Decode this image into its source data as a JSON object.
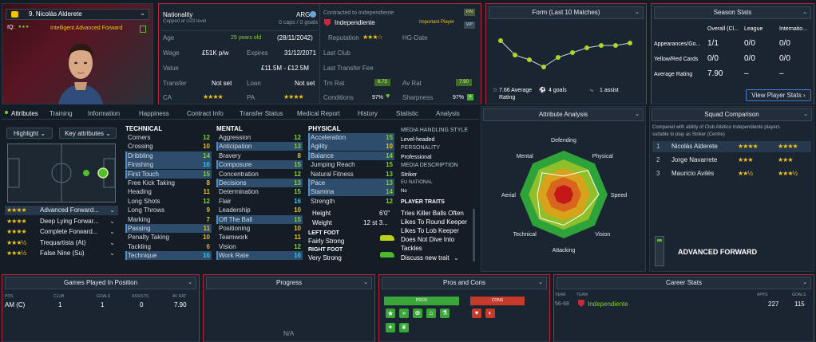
{
  "player": {
    "number_name": "9. Nicolás Alderete",
    "iq_label": "IQ:",
    "personality_tags": "Intelligent Advanced Forward"
  },
  "info": {
    "nationality_label": "Nationality",
    "nationality_value": "ARG",
    "caps_note": "Capped at U23 level",
    "caps_value": "0 caps / 0 goals",
    "age_label": "Age",
    "age_value": "25 years old",
    "dob": "(28/11/2042)",
    "wage_label": "Wage",
    "wage_value": "£51K p/w",
    "expires_label": "Expires",
    "expires_value": "31/12/2071",
    "value_label": "Value",
    "value_value": "£11.5M - £12.5M",
    "transfer_label": "Transfer",
    "transfer_value": "Not set",
    "loan_label": "Loan",
    "loan_value": "Not set",
    "ca_label": "CA",
    "pa_label": "PA",
    "contract_label": "Contracted to Independiente",
    "club": "Independiente",
    "important": "Important Player",
    "rep_label": "Reputation",
    "hg_label": "HG-Date",
    "last_club_label": "Last Club",
    "last_fee_label": "Last Transfer Fee",
    "trn_label": "Trn Rat",
    "trn_value": "6.75",
    "av_label": "Av Rat",
    "av_value": "7.90",
    "cond_label": "Conditions",
    "cond_value": "97%",
    "sharp_label": "Sharpness",
    "sharp_value": "97%",
    "badge_top": "FIN",
    "badge_bottom": "WP"
  },
  "form": {
    "title": "Form (Last 10 Matches)",
    "avg": "7.66 Average",
    "avg2": "Rating",
    "goals": "4 goals",
    "assists": "1 assist",
    "values": [
      8.1,
      7.5,
      7.3,
      7.0,
      7.4,
      7.6,
      7.8,
      7.9,
      7.9,
      8.0
    ]
  },
  "season": {
    "title": "Season Stats",
    "cols": [
      "Overall (Cl...",
      "League",
      "Internatio..."
    ],
    "rows": [
      {
        "label": "Appearances/Go...",
        "v": [
          "1/1",
          "0/0",
          "0/0"
        ]
      },
      {
        "label": "Yellow/Red Cards",
        "v": [
          "0/0",
          "0/0",
          "0/0"
        ]
      },
      {
        "label": "Average Rating",
        "v": [
          "7.90",
          "–",
          "–"
        ]
      }
    ],
    "button": "View Player Stats"
  },
  "tabs": [
    "Attributes",
    "Training",
    "Information",
    "Happiness",
    "Contract Info",
    "Transfer Status",
    "Medical Report",
    "History",
    "Statistic",
    "Analysis"
  ],
  "highlight": {
    "btn1": "Highlight",
    "btn2": "Key attributes"
  },
  "roles": [
    {
      "label": "Advanced Forward...",
      "stars": "★★★★",
      "sel": true
    },
    {
      "label": "Deep Lying Forwar...",
      "stars": "★★★★"
    },
    {
      "label": "Complete Forward...",
      "stars": "★★★★"
    },
    {
      "label": "Trequartista (At)",
      "stars": "★★★½"
    },
    {
      "label": "False Nine (Su)",
      "stars": "★★★½"
    }
  ],
  "technical": {
    "title": "TECHNICAL",
    "items": [
      {
        "n": "Corners",
        "v": "12",
        "c": "#84cf34"
      },
      {
        "n": "Crossing",
        "v": "10",
        "c": "#e8c11a"
      },
      {
        "n": "Dribbling",
        "v": "14",
        "c": "#84cf34",
        "h": 1
      },
      {
        "n": "Finishing",
        "v": "16",
        "c": "#29c4e8",
        "h": 1
      },
      {
        "n": "First Touch",
        "v": "15",
        "c": "#84cf34",
        "h": 1
      },
      {
        "n": "Free Kick Taking",
        "v": "8",
        "c": "#e8c11a"
      },
      {
        "n": "Heading",
        "v": "11",
        "c": "#e8c11a"
      },
      {
        "n": "Long Shots",
        "v": "12",
        "c": "#84cf34"
      },
      {
        "n": "Long Throws",
        "v": "9",
        "c": "#e8c11a"
      },
      {
        "n": "Marking",
        "v": "7",
        "c": "#e8c11a"
      },
      {
        "n": "Passing",
        "v": "11",
        "c": "#e8c11a",
        "h": 1
      },
      {
        "n": "Penalty Taking",
        "v": "10",
        "c": "#e8c11a"
      },
      {
        "n": "Tackling",
        "v": "6",
        "c": "#f0a030"
      },
      {
        "n": "Technique",
        "v": "16",
        "c": "#29c4e8",
        "h": 1
      }
    ]
  },
  "mental": {
    "title": "MENTAL",
    "items": [
      {
        "n": "Aggression",
        "v": "12",
        "c": "#84cf34"
      },
      {
        "n": "Anticipation",
        "v": "13",
        "c": "#84cf34",
        "h": 1
      },
      {
        "n": "Bravery",
        "v": "8",
        "c": "#e8c11a"
      },
      {
        "n": "Composure",
        "v": "15",
        "c": "#84cf34",
        "h": 1
      },
      {
        "n": "Concentration",
        "v": "12",
        "c": "#84cf34"
      },
      {
        "n": "Decisions",
        "v": "13",
        "c": "#84cf34",
        "h": 1
      },
      {
        "n": "Determination",
        "v": "15",
        "c": "#84cf34"
      },
      {
        "n": "Flair",
        "v": "16",
        "c": "#29c4e8"
      },
      {
        "n": "Leadership",
        "v": "10",
        "c": "#e8c11a"
      },
      {
        "n": "Off The Ball",
        "v": "15",
        "c": "#84cf34",
        "h": 1
      },
      {
        "n": "Positioning",
        "v": "10",
        "c": "#e8c11a"
      },
      {
        "n": "Teamwork",
        "v": "11",
        "c": "#e8c11a"
      },
      {
        "n": "Vision",
        "v": "12",
        "c": "#84cf34"
      },
      {
        "n": "Work Rate",
        "v": "16",
        "c": "#29c4e8",
        "h": 1
      }
    ]
  },
  "physical": {
    "title": "PHYSICAL",
    "items": [
      {
        "n": "Acceleration",
        "v": "15",
        "c": "#84cf34",
        "h": 1
      },
      {
        "n": "Agility",
        "v": "10",
        "c": "#e8c11a",
        "h": 1
      },
      {
        "n": "Balance",
        "v": "14",
        "c": "#84cf34",
        "h": 1
      },
      {
        "n": "Jumping Reach",
        "v": "15",
        "c": "#84cf34"
      },
      {
        "n": "Natural Fitness",
        "v": "13",
        "c": "#84cf34"
      },
      {
        "n": "Pace",
        "v": "13",
        "c": "#84cf34",
        "h": 1
      },
      {
        "n": "Stamina",
        "v": "14",
        "c": "#84cf34",
        "h": 1
      },
      {
        "n": "Strength",
        "v": "12",
        "c": "#84cf34"
      }
    ]
  },
  "body": {
    "height_label": "Height",
    "height_value": "6'0\"",
    "weight_label": "Weight",
    "weight_value": "12 st 3...",
    "lf_label": "LEFT FOOT",
    "lf_value": "Fairly Strong",
    "rf_label": "RIGHT FOOT",
    "rf_value": "Very Strong"
  },
  "media": {
    "h1": "MEDIA HANDLING STYLE",
    "v1": "Level-headed",
    "h2": "PERSONALITY",
    "v2": "Professional",
    "h3": "MEDIA DESCRIPTION",
    "v3": "Striker",
    "h4": "EU NATIONAL",
    "v4": "No",
    "traits_title": "PLAYER TRAITS",
    "traits": [
      "Tries Killer Balls Often",
      "Likes To Round Keeper",
      "Likes To Lob Keeper",
      "Does Not Dive Into",
      "Tackles"
    ],
    "discuss": "Discuss new trait"
  },
  "analysis": {
    "title": "Attribute Analysis",
    "labels": [
      "Defending",
      "Physical",
      "Speed",
      "Vision",
      "Attacking",
      "Technical",
      "Aerial",
      "Mental"
    ],
    "values": [
      0.42,
      0.78,
      0.8,
      0.62,
      0.7,
      0.76,
      0.6,
      0.7
    ]
  },
  "squad": {
    "title": "Squad Comparison",
    "desc1": "Compared with ability of Club Atlético Independiente players",
    "desc2": "suitable to play as Striker (Centre)",
    "rows": [
      {
        "rank": "1",
        "name": "Nicolás Alderete",
        "s1": "★★★★",
        "s2": "★★★★"
      },
      {
        "rank": "2",
        "name": "Jorge Navarrete",
        "s1": "★★★",
        "s2": "★★★"
      },
      {
        "rank": "3",
        "name": "Mauricio Avilés",
        "s1": "★★½",
        "s2": "★★★½"
      }
    ],
    "role_name": "ADVANCED FORWARD"
  },
  "gpp": {
    "title": "Games Played In Position",
    "cols": [
      "POS",
      "CLUB",
      "GOALS",
      "ASSISTS",
      "AV RAT"
    ],
    "row": [
      "AM (C)",
      "1",
      "1",
      "0",
      "7.90"
    ]
  },
  "progress": {
    "title": "Progress",
    "na": "N/A"
  },
  "proscons": {
    "title": "Pros and Cons",
    "pros": "PROS",
    "cons": "CONS"
  },
  "career": {
    "title": "Career Stats",
    "cols": [
      "YEAR",
      "TEAM",
      "APPS",
      "GOALS"
    ],
    "row": {
      "year": "56-68",
      "team": "Independiente",
      "apps": "227",
      "goals": "115"
    }
  }
}
